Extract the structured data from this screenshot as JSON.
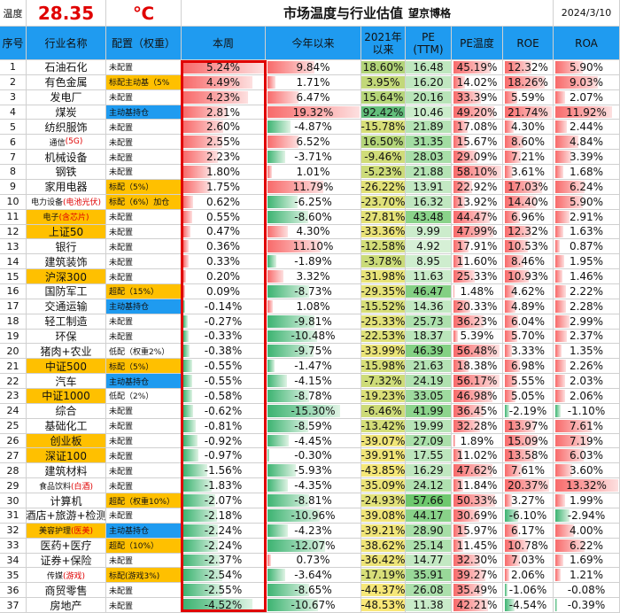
{
  "header": {
    "temp_label": "温度",
    "temp_value": "28.35",
    "temp_unit": "℃",
    "title": "市场温度与行业估值",
    "brand": "望京博格",
    "date": "2024/3/10"
  },
  "columns": [
    "序号",
    "行业名称",
    "配置（权重）",
    "本周",
    "今年以来",
    "2021年\n以来",
    "PE\n(TTM)",
    "PE温度",
    "ROE",
    "ROA"
  ],
  "rows": [
    {
      "no": "1",
      "name": "石油石化",
      "config": "未配置",
      "values": [
        "5.24%",
        "9.84%",
        "18.60%",
        "16.48",
        "45.19%",
        "12.32%",
        "5.90%"
      ]
    },
    {
      "no": "2",
      "name": "有色金属",
      "config": "标配主动基（5%",
      "values": [
        "4.49%",
        "1.71%",
        "3.95%",
        "16.20",
        "14.02%",
        "18.26%",
        "9.03%"
      ]
    },
    {
      "no": "3",
      "name": "发电厂",
      "config": "未配置",
      "values": [
        "4.23%",
        "6.47%",
        "15.64%",
        "20.16",
        "33.39%",
        "5.59%",
        "2.07%"
      ]
    },
    {
      "no": "4",
      "name": "煤炭",
      "config": "主动基持仓",
      "values": [
        "2.81%",
        "19.32%",
        "92.42%",
        "10.46",
        "49.20%",
        "21.74%",
        "11.92%"
      ]
    },
    {
      "no": "5",
      "name": "纺织服饰",
      "config": "未配置",
      "values": [
        "2.60%",
        "-4.87%",
        "-15.78%",
        "21.89",
        "17.08%",
        "4.30%",
        "2.44%"
      ]
    },
    {
      "no": "6",
      "name": "通信",
      "note": "(5G)",
      "config": "未配置",
      "values": [
        "2.55%",
        "6.52%",
        "16.50%",
        "31.35",
        "15.67%",
        "8.60%",
        "4.84%"
      ]
    },
    {
      "no": "7",
      "name": "机械设备",
      "config": "未配置",
      "values": [
        "2.23%",
        "-3.71%",
        "-9.46%",
        "28.03",
        "29.09%",
        "7.21%",
        "3.39%"
      ]
    },
    {
      "no": "8",
      "name": "钢铁",
      "config": "未配置",
      "values": [
        "1.80%",
        "1.01%",
        "-5.23%",
        "21.88",
        "58.10%",
        "3.61%",
        "1.68%"
      ]
    },
    {
      "no": "9",
      "name": "家用电器",
      "config": "标配（5%）",
      "values": [
        "1.75%",
        "11.79%",
        "-26.22%",
        "13.91",
        "22.92%",
        "17.03%",
        "6.24%"
      ]
    },
    {
      "no": "10",
      "name": "电力设备",
      "note": "(电池光伏)",
      "config": "标配（6%）加仓",
      "values": [
        "0.62%",
        "-6.25%",
        "-23.70%",
        "16.32",
        "13.92%",
        "14.40%",
        "5.90%"
      ]
    },
    {
      "no": "11",
      "name": "电子",
      "note": "(含芯片)",
      "config": "未配置",
      "values": [
        "0.55%",
        "-8.60%",
        "-27.81%",
        "43.48",
        "44.47%",
        "6.96%",
        "2.91%"
      ]
    },
    {
      "no": "12",
      "name": "上证50",
      "config": "未配置",
      "values": [
        "0.47%",
        "4.30%",
        "-33.36%",
        "9.99",
        "47.99%",
        "12.32%",
        "1.63%"
      ]
    },
    {
      "no": "13",
      "name": "银行",
      "config": "未配置",
      "values": [
        "0.36%",
        "11.10%",
        "-12.58%",
        "4.92",
        "17.91%",
        "10.53%",
        "0.87%"
      ]
    },
    {
      "no": "14",
      "name": "建筑装饰",
      "config": "未配置",
      "values": [
        "0.33%",
        "-1.89%",
        "-3.78%",
        "8.95",
        "11.60%",
        "8.46%",
        "1.95%"
      ]
    },
    {
      "no": "15",
      "name": "沪深300",
      "config": "未配置",
      "values": [
        "0.20%",
        "3.32%",
        "-31.98%",
        "11.63",
        "25.33%",
        "10.93%",
        "1.46%"
      ]
    },
    {
      "no": "16",
      "name": "国防军工",
      "config": "超配（15%）",
      "values": [
        "0.09%",
        "-8.73%",
        "-29.35%",
        "46.47",
        "1.48%",
        "4.62%",
        "2.22%"
      ]
    },
    {
      "no": "17",
      "name": "交通运输",
      "config": "主动基持仓",
      "values": [
        "-0.14%",
        "1.08%",
        "-15.52%",
        "14.36",
        "20.33%",
        "4.89%",
        "2.28%"
      ]
    },
    {
      "no": "18",
      "name": "轻工制造",
      "config": "未配置",
      "values": [
        "-0.27%",
        "-9.81%",
        "-25.33%",
        "25.73",
        "36.23%",
        "6.04%",
        "2.99%"
      ]
    },
    {
      "no": "19",
      "name": "环保",
      "config": "未配置",
      "values": [
        "-0.33%",
        "-10.48%",
        "-22.53%",
        "18.37",
        "5.39%",
        "5.70%",
        "2.37%"
      ]
    },
    {
      "no": "20",
      "name": "猪肉+农业",
      "config": "低配（权重2%）",
      "values": [
        "-0.38%",
        "-9.75%",
        "-33.99%",
        "46.39",
        "56.48%",
        "3.33%",
        "1.35%"
      ]
    },
    {
      "no": "21",
      "name": "中证500",
      "config": "标配（5%）",
      "values": [
        "-0.55%",
        "-1.47%",
        "-15.98%",
        "21.63",
        "18.38%",
        "6.98%",
        "2.26%"
      ]
    },
    {
      "no": "22",
      "name": "汽车",
      "config": "主动基持仓",
      "values": [
        "-0.55%",
        "-4.15%",
        "-7.32%",
        "24.19",
        "56.17%",
        "5.55%",
        "2.03%"
      ]
    },
    {
      "no": "23",
      "name": "中证1000",
      "config": "低配（2%）",
      "values": [
        "-0.58%",
        "-8.78%",
        "-19.23%",
        "33.05",
        "46.98%",
        "5.05%",
        "2.06%"
      ]
    },
    {
      "no": "24",
      "name": "综合",
      "config": "未配置",
      "values": [
        "-0.62%",
        "-15.30%",
        "-6.46%",
        "41.99",
        "36.45%",
        "-2.19%",
        "-1.10%"
      ]
    },
    {
      "no": "25",
      "name": "基础化工",
      "config": "未配置",
      "values": [
        "-0.81%",
        "-8.59%",
        "-13.42%",
        "19.99",
        "32.28%",
        "13.97%",
        "7.61%"
      ]
    },
    {
      "no": "26",
      "name": "创业板",
      "config": "未配置",
      "values": [
        "-0.92%",
        "-4.45%",
        "-39.07%",
        "27.09",
        "1.89%",
        "15.09%",
        "7.19%"
      ]
    },
    {
      "no": "27",
      "name": "深证100",
      "config": "未配置",
      "values": [
        "-0.97%",
        "-0.30%",
        "-39.91%",
        "17.55",
        "11.02%",
        "13.58%",
        "6.03%"
      ]
    },
    {
      "no": "28",
      "name": "建筑材料",
      "config": "未配置",
      "values": [
        "-1.56%",
        "-5.93%",
        "-43.85%",
        "16.29",
        "47.62%",
        "7.61%",
        "3.60%"
      ]
    },
    {
      "no": "29",
      "name": "食品饮料",
      "note": "(白酒)",
      "config": "未配置",
      "values": [
        "-1.83%",
        "-4.35%",
        "-35.09%",
        "24.12",
        "11.84%",
        "20.37%",
        "13.32%"
      ]
    },
    {
      "no": "30",
      "name": "计算机",
      "config": "超配（权重10%）",
      "values": [
        "-2.07%",
        "-8.81%",
        "-24.93%",
        "57.66",
        "50.33%",
        "3.27%",
        "1.99%"
      ]
    },
    {
      "no": "31",
      "name": "酒店+旅游+检测",
      "config": "未配置",
      "values": [
        "-2.18%",
        "-10.96%",
        "-39.08%",
        "44.17",
        "30.69%",
        "-6.10%",
        "-2.94%"
      ]
    },
    {
      "no": "32",
      "name": "美容护理",
      "note": "(医美)",
      "config": "主动基持仓",
      "values": [
        "-2.24%",
        "-4.23%",
        "-39.21%",
        "28.90",
        "15.97%",
        "6.17%",
        "4.00%"
      ]
    },
    {
      "no": "33",
      "name": "医药+医疗",
      "config": "超配（10%）",
      "values": [
        "-2.24%",
        "-12.07%",
        "-38.62%",
        "25.14",
        "11.45%",
        "10.78%",
        "6.22%"
      ]
    },
    {
      "no": "34",
      "name": "证券+保险",
      "config": "未配置",
      "values": [
        "-2.37%",
        "0.73%",
        "-36.42%",
        "14.77",
        "32.30%",
        "7.03%",
        "1.69%"
      ]
    },
    {
      "no": "35",
      "name": "传媒",
      "note": "(游戏)",
      "config": "标配(游戏3%)",
      "values": [
        "-2.54%",
        "-3.64%",
        "-17.19%",
        "35.91",
        "39.27%",
        "2.06%",
        "1.21%"
      ]
    },
    {
      "no": "36",
      "name": "商贸零售",
      "config": "未配置",
      "values": [
        "-2.55%",
        "-8.65%",
        "-44.37%",
        "26.08",
        "35.49%",
        "-1.06%",
        "-0.08%"
      ]
    },
    {
      "no": "37",
      "name": "房地产",
      "config": "未配置",
      "values": [
        "-4.52%",
        "-10.67%",
        "-48.53%",
        "11.38",
        "42.21%",
        "-4.54%",
        "-0.39%"
      ]
    }
  ]
}
